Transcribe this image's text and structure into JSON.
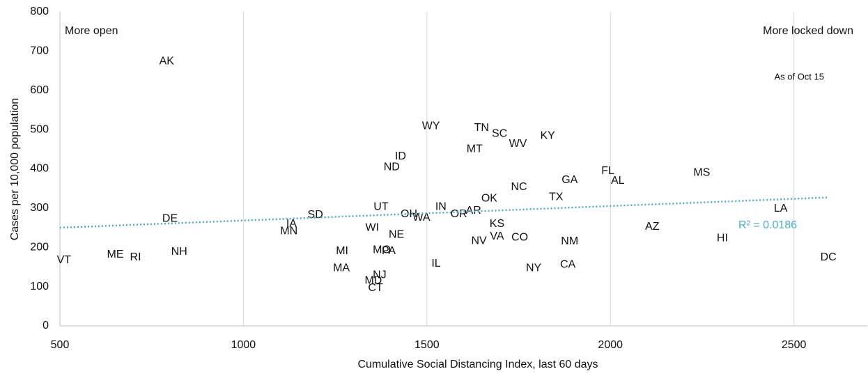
{
  "chart_data": {
    "type": "scatter",
    "x_label": "Cumulative Social Distancing Index, last 60 days",
    "y_label": "Cases per 10,000 population",
    "labels": [
      "AK",
      "DE",
      "VT",
      "ME",
      "RI",
      "NH",
      "IA",
      "MN",
      "SD",
      "MI",
      "MA",
      "WI",
      "UT",
      "NE",
      "MO",
      "PA",
      "NJ",
      "MD",
      "CT",
      "ND",
      "ID",
      "WY",
      "OH",
      "WA",
      "IN",
      "IL",
      "OR",
      "AR",
      "OK",
      "KS",
      "NV",
      "VA",
      "MT",
      "TN",
      "SC",
      "WV",
      "KY",
      "NC",
      "TX",
      "CO",
      "NY",
      "GA",
      "NM",
      "CA",
      "FL",
      "AL",
      "AZ",
      "MS",
      "HI",
      "LA",
      "DC"
    ],
    "x": [
      791,
      800,
      511,
      651,
      706,
      825,
      1131,
      1124,
      1196,
      1269,
      1267,
      1351,
      1375,
      1417,
      1377,
      1396,
      1371,
      1354,
      1360,
      1404,
      1428,
      1511,
      1451,
      1485,
      1538,
      1525,
      1587,
      1627,
      1670,
      1691,
      1642,
      1691,
      1630,
      1649,
      1698,
      1748,
      1829,
      1751,
      1852,
      1753,
      1791,
      1889,
      1889,
      1884,
      1993,
      2020,
      2114,
      2249,
      2305,
      2464,
      2594
    ],
    "y": [
      674,
      273,
      167,
      181,
      174,
      188,
      259,
      241,
      282,
      190,
      147,
      250,
      303,
      232,
      193,
      190,
      129,
      115,
      96,
      404,
      431,
      509,
      284,
      275,
      303,
      158,
      284,
      293,
      324,
      259,
      216,
      227,
      450,
      504,
      489,
      463,
      484,
      353,
      328,
      225,
      147,
      371,
      215,
      156,
      394,
      369,
      252,
      390,
      223,
      298,
      174
    ],
    "color": "#111111",
    "xlim": [
      500,
      2700
    ],
    "ylim": [
      0,
      800
    ],
    "xticks": [
      500,
      1000,
      1500,
      2000,
      2500
    ],
    "yticks": [
      0,
      100,
      200,
      300,
      400,
      500,
      600,
      700,
      800
    ],
    "grid": {
      "x": true,
      "y": false
    },
    "trendline": {
      "x": [
        500,
        2590
      ],
      "y": [
        250,
        327
      ],
      "color": "#4aacc6",
      "label": "R² = 0.0186"
    },
    "annotations": [
      "More open",
      "More locked down",
      "As of Oct 15"
    ]
  }
}
